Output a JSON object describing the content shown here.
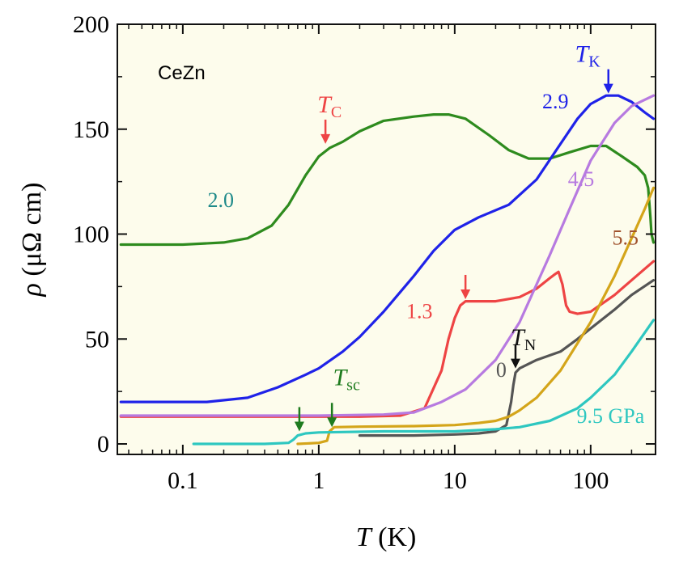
{
  "chart_data": {
    "type": "line",
    "sample_label": "CeZn",
    "xlabel": {
      "italic": "T",
      "rest": " (K)"
    },
    "ylabel": {
      "italic": "ρ",
      "rest": " (μΩ cm)"
    },
    "xscale": "log",
    "xlim": [
      0.033,
      300
    ],
    "ylim": [
      -5,
      200
    ],
    "xticks": [
      {
        "value": 0.1,
        "label": "0.1"
      },
      {
        "value": 1,
        "label": "1"
      },
      {
        "value": 10,
        "label": "10"
      },
      {
        "value": 100,
        "label": "100"
      }
    ],
    "yticks": [
      {
        "value": 0,
        "label": "0"
      },
      {
        "value": 50,
        "label": "50"
      },
      {
        "value": 100,
        "label": "100"
      },
      {
        "value": 150,
        "label": "150"
      },
      {
        "value": 200,
        "label": "200"
      }
    ],
    "colors": {
      "background": "#fdfcec",
      "p0": "#555555",
      "p1_3": "#ee4444",
      "p2_0": "#2e8b1e",
      "p2_9": "#1f22e8",
      "p4_5": "#b77ae0",
      "p5_5": "#d4a51a",
      "p9_5": "#2ec7c0",
      "label2_0": "#1f8a8a",
      "label5_5": "#a0522d",
      "tn_arrow": "#111111",
      "tsc_arrow": "#1e7b1e"
    },
    "series": [
      {
        "name": "0",
        "pressure": "0 GPa",
        "color_key": "p0",
        "points": [
          [
            2,
            4
          ],
          [
            5,
            4
          ],
          [
            10,
            4.5
          ],
          [
            15,
            5
          ],
          [
            20,
            6
          ],
          [
            24,
            9
          ],
          [
            26,
            20
          ],
          [
            27,
            28
          ],
          [
            28,
            34
          ],
          [
            30,
            36
          ],
          [
            40,
            40
          ],
          [
            60,
            44
          ],
          [
            80,
            50
          ],
          [
            100,
            55
          ],
          [
            150,
            64
          ],
          [
            200,
            71
          ],
          [
            290,
            78
          ]
        ]
      },
      {
        "name": "1.3",
        "pressure": "1.3 GPa",
        "color_key": "p1_3",
        "points": [
          [
            0.035,
            13
          ],
          [
            0.5,
            13
          ],
          [
            2,
            13
          ],
          [
            4,
            13.5
          ],
          [
            6,
            17
          ],
          [
            8,
            35
          ],
          [
            9,
            50
          ],
          [
            10,
            60
          ],
          [
            11,
            66
          ],
          [
            12,
            68
          ],
          [
            15,
            68
          ],
          [
            20,
            68
          ],
          [
            30,
            70
          ],
          [
            40,
            74
          ],
          [
            50,
            79
          ],
          [
            55,
            81
          ],
          [
            58,
            82
          ],
          [
            62,
            76
          ],
          [
            66,
            66
          ],
          [
            70,
            63
          ],
          [
            80,
            62
          ],
          [
            100,
            63
          ],
          [
            150,
            71
          ],
          [
            200,
            78
          ],
          [
            290,
            87
          ]
        ]
      },
      {
        "name": "2.0",
        "pressure": "2.0 GPa",
        "color_key": "p2_0",
        "points": [
          [
            0.035,
            95
          ],
          [
            0.1,
            95
          ],
          [
            0.2,
            96
          ],
          [
            0.3,
            98
          ],
          [
            0.45,
            104
          ],
          [
            0.6,
            114
          ],
          [
            0.8,
            128
          ],
          [
            1.0,
            137
          ],
          [
            1.2,
            141
          ],
          [
            1.5,
            144
          ],
          [
            2,
            149
          ],
          [
            3,
            154
          ],
          [
            5,
            156
          ],
          [
            7,
            157
          ],
          [
            9,
            157
          ],
          [
            12,
            155
          ],
          [
            18,
            147
          ],
          [
            25,
            140
          ],
          [
            35,
            136
          ],
          [
            50,
            136
          ],
          [
            70,
            139
          ],
          [
            100,
            142
          ],
          [
            130,
            142
          ],
          [
            170,
            137
          ],
          [
            220,
            132
          ],
          [
            250,
            128
          ],
          [
            265,
            122
          ],
          [
            270,
            115
          ],
          [
            275,
            108
          ],
          [
            280,
            100
          ],
          [
            290,
            96
          ]
        ]
      },
      {
        "name": "2.9",
        "pressure": "2.9 GPa",
        "color_key": "p2_9",
        "points": [
          [
            0.035,
            20
          ],
          [
            0.15,
            20
          ],
          [
            0.3,
            22
          ],
          [
            0.5,
            27
          ],
          [
            0.8,
            33
          ],
          [
            1.0,
            36
          ],
          [
            1.5,
            44
          ],
          [
            2,
            51
          ],
          [
            3,
            63
          ],
          [
            5,
            80
          ],
          [
            7,
            92
          ],
          [
            10,
            102
          ],
          [
            15,
            108
          ],
          [
            25,
            114
          ],
          [
            40,
            126
          ],
          [
            60,
            143
          ],
          [
            80,
            155
          ],
          [
            100,
            162
          ],
          [
            130,
            166
          ],
          [
            160,
            166
          ],
          [
            200,
            163
          ],
          [
            250,
            158
          ],
          [
            290,
            155
          ]
        ]
      },
      {
        "name": "4.5",
        "pressure": "4.5 GPa",
        "color_key": "p4_5",
        "points": [
          [
            0.035,
            13.5
          ],
          [
            1,
            13.5
          ],
          [
            3,
            14
          ],
          [
            5,
            15
          ],
          [
            8,
            20
          ],
          [
            12,
            26
          ],
          [
            20,
            40
          ],
          [
            30,
            58
          ],
          [
            50,
            90
          ],
          [
            70,
            112
          ],
          [
            100,
            135
          ],
          [
            150,
            153
          ],
          [
            200,
            161
          ],
          [
            290,
            166
          ]
        ]
      },
      {
        "name": "5.5",
        "pressure": "5.5 GPa",
        "color_key": "p5_5",
        "points": [
          [
            0.7,
            0
          ],
          [
            1.0,
            0.5
          ],
          [
            1.15,
            1.5
          ],
          [
            1.2,
            6
          ],
          [
            1.3,
            8
          ],
          [
            2,
            8.2
          ],
          [
            5,
            8.5
          ],
          [
            10,
            9
          ],
          [
            15,
            10
          ],
          [
            20,
            11
          ],
          [
            25,
            13
          ],
          [
            30,
            16
          ],
          [
            40,
            22
          ],
          [
            60,
            35
          ],
          [
            80,
            48
          ],
          [
            100,
            58
          ],
          [
            150,
            80
          ],
          [
            200,
            98
          ],
          [
            250,
            112
          ],
          [
            290,
            122
          ]
        ]
      },
      {
        "name": "9.5 GPa",
        "pressure": "9.5 GPa",
        "color_key": "p9_5",
        "points": [
          [
            0.12,
            0
          ],
          [
            0.4,
            0
          ],
          [
            0.6,
            0.5
          ],
          [
            0.65,
            2
          ],
          [
            0.7,
            4
          ],
          [
            0.8,
            5
          ],
          [
            1,
            5.5
          ],
          [
            3,
            6
          ],
          [
            10,
            6
          ],
          [
            20,
            7
          ],
          [
            30,
            8
          ],
          [
            50,
            11
          ],
          [
            80,
            17
          ],
          [
            100,
            22
          ],
          [
            150,
            33
          ],
          [
            200,
            44
          ],
          [
            290,
            59
          ]
        ]
      }
    ],
    "curve_labels": [
      {
        "text": "0",
        "x": 22,
        "y": 32,
        "color_key": "p0"
      },
      {
        "text": "1.3",
        "x": 5.5,
        "y": 60,
        "color_key": "p1_3"
      },
      {
        "text": "2.0",
        "x": 0.19,
        "y": 113,
        "color_key": "label2_0"
      },
      {
        "text": "2.9",
        "x": 55,
        "y": 160,
        "color_key": "p2_9"
      },
      {
        "text": "4.5",
        "x": 85,
        "y": 123,
        "color_key": "p4_5"
      },
      {
        "text": "5.5",
        "x": 180,
        "y": 95,
        "color_key": "label5_5"
      },
      {
        "text": "9.5 GPa",
        "x": 140,
        "y": 10,
        "color_key": "p9_5"
      }
    ],
    "annotations": [
      {
        "name": "tc",
        "symbol": "T",
        "subscript": "C",
        "color_key": "p1_3",
        "arrow_x": 1.12,
        "arrow_y": 143,
        "label_x": 1.2,
        "label_y": 158
      },
      {
        "name": "tk",
        "symbol": "T",
        "subscript": "K",
        "color_key": "p2_9",
        "arrow_x": 135,
        "arrow_y": 167,
        "label_x": 95,
        "label_y": 182
      },
      {
        "name": "tn",
        "symbol": "T",
        "subscript": "N",
        "color_key": "tn_arrow",
        "arrow_x": 28,
        "arrow_y": 36,
        "label_x": 32,
        "label_y": 47
      },
      {
        "name": "tsc",
        "symbol": "T",
        "subscript": "sc",
        "color_key": "tsc_arrow",
        "arrow_x": 1.25,
        "arrow_y": 8,
        "label_x": 1.6,
        "label_y": 28
      }
    ],
    "plain_arrows": [
      {
        "name": "tc-1.3-arrow",
        "color_key": "p1_3",
        "x": 12,
        "y": 69
      },
      {
        "name": "tsc-9.5-arrow",
        "color_key": "tsc_arrow",
        "x": 0.72,
        "y": 6
      }
    ]
  }
}
